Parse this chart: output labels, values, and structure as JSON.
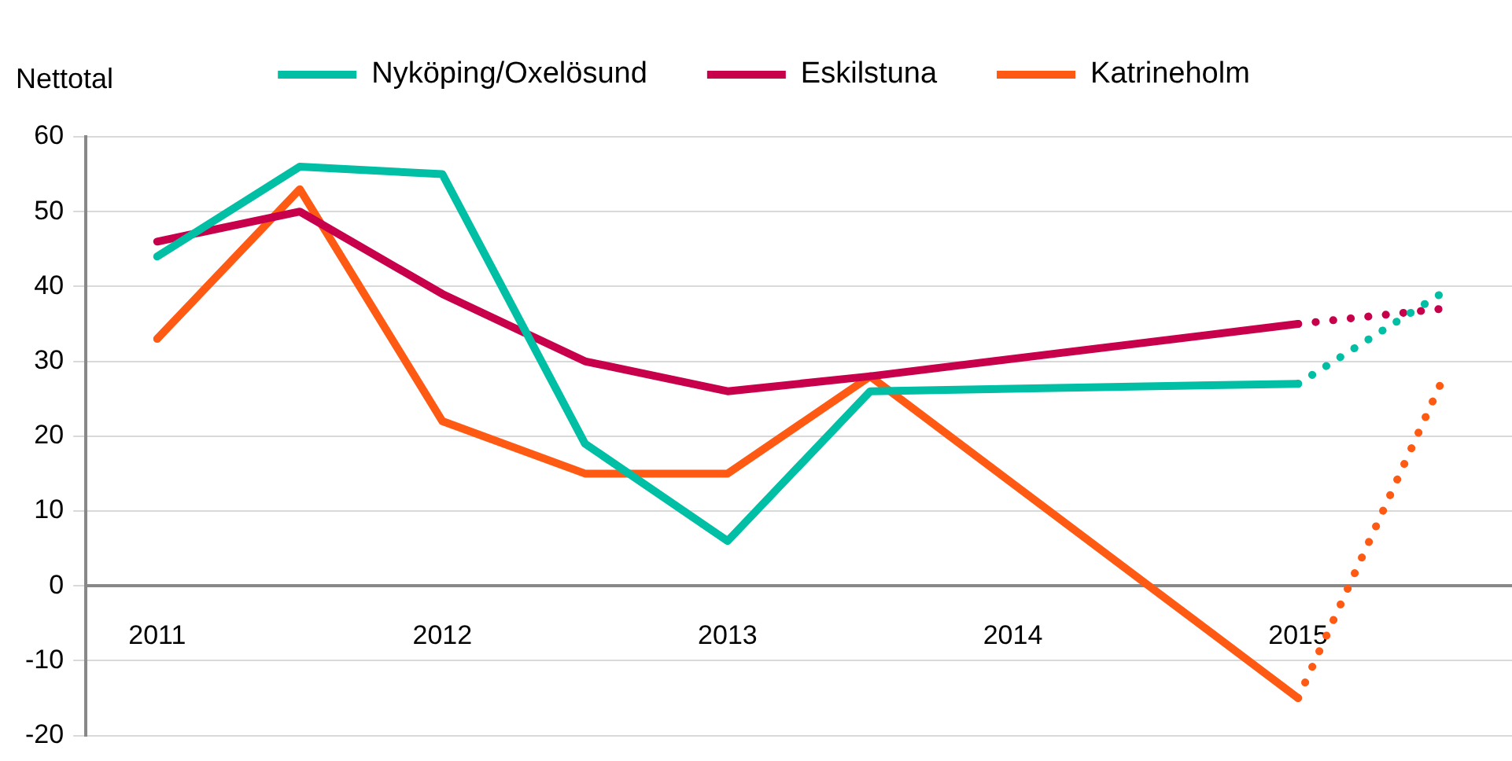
{
  "chart_data": {
    "type": "line",
    "ylabel": "Nettotal",
    "categories": [
      "2011",
      null,
      "2012",
      null,
      "2013",
      null,
      "2014",
      null,
      "2015",
      null
    ],
    "series": [
      {
        "name": "Nyköping/Oxelösund",
        "color": "#00bfa5",
        "values": [
          44,
          56,
          55,
          19,
          6,
          26,
          null,
          null,
          27,
          null
        ]
      },
      {
        "name": "Eskilstuna",
        "color": "#c8004b",
        "values": [
          46,
          50,
          39,
          30,
          26,
          28,
          null,
          null,
          35,
          null
        ]
      },
      {
        "name": "Katrineholm",
        "color": "#ff5a14",
        "values": [
          33,
          53,
          22,
          15,
          15,
          28,
          null,
          null,
          -15,
          null
        ]
      },
      {
        "color": "#00bfa5",
        "line_style": "dotted",
        "values": [
          null,
          null,
          null,
          null,
          null,
          null,
          null,
          null,
          27,
          39
        ]
      },
      {
        "color": "#c8004b",
        "line_style": "dotted",
        "values": [
          null,
          null,
          null,
          null,
          null,
          null,
          null,
          null,
          35,
          37
        ]
      },
      {
        "color": "#ff5a14",
        "line_style": "dotted",
        "values": [
          null,
          null,
          null,
          null,
          null,
          null,
          null,
          null,
          -15,
          27
        ]
      }
    ],
    "ylim": [
      -20,
      60
    ],
    "yticks": [
      -20,
      -10,
      0,
      10,
      20,
      30,
      40,
      50,
      60
    ],
    "grid": "y",
    "legend": "top",
    "marker": "none",
    "line_style": "solid"
  }
}
